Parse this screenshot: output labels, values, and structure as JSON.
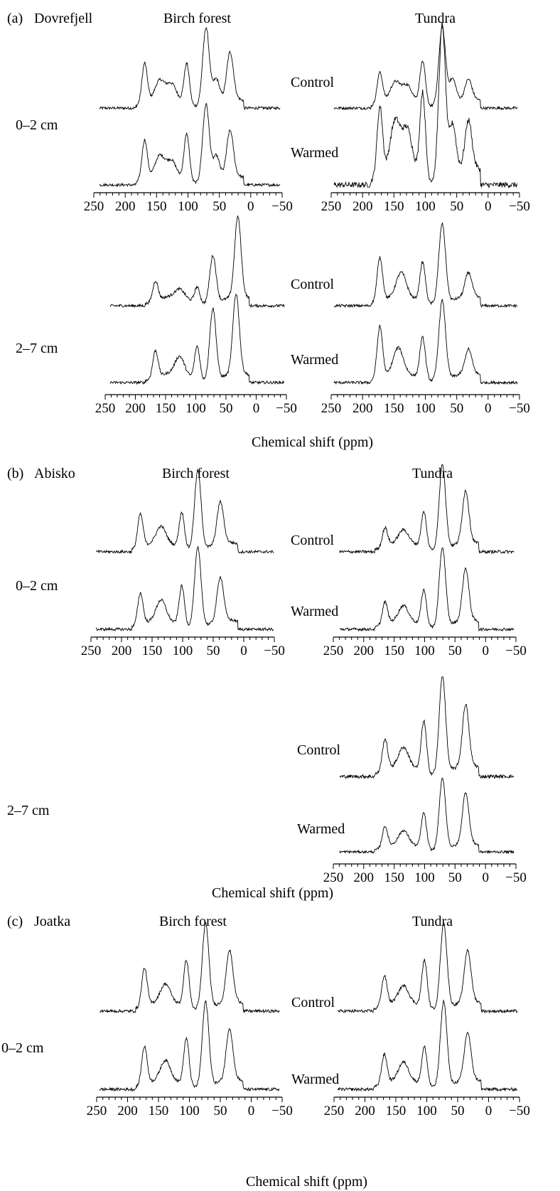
{
  "figure": {
    "x_axis_title": "Chemical shift (ppm)",
    "x_ticks": [
      "250",
      "200",
      "150",
      "100",
      "50",
      "0",
      "−50"
    ],
    "panels": [
      {
        "label": "(a)",
        "site": "Dovrefjell",
        "habitats": [
          "Birch forest",
          "Tundra"
        ],
        "depths": [
          {
            "label": "0–2 cm",
            "treatments": [
              "Control",
              "Warmed"
            ]
          },
          {
            "label": "2–7 cm",
            "treatments": [
              "Control",
              "Warmed"
            ]
          }
        ]
      },
      {
        "label": "(b)",
        "site": "Abisko",
        "habitats": [
          "Birch forest",
          "Tundra"
        ],
        "depths": [
          {
            "label": "0–2 cm",
            "treatments": [
              "Control",
              "Warmed"
            ]
          },
          {
            "label": "2–7 cm",
            "treatments": [
              "Control",
              "Warmed"
            ]
          }
        ]
      },
      {
        "label": "(c)",
        "site": "Joatka",
        "habitats": [
          "Birch forest",
          "Tundra"
        ],
        "depths": [
          {
            "label": "0–2 cm",
            "treatments": [
              "Control",
              "Warmed"
            ]
          }
        ]
      }
    ]
  },
  "chart_data": {
    "type": "line",
    "x_label": "Chemical shift (ppm)",
    "x_range": [
      250,
      -50
    ],
    "x_axis_reversed": true,
    "x_tick_values": [
      250,
      200,
      150,
      100,
      50,
      0,
      -50
    ],
    "y_axis": "none",
    "peak_positions_ppm": [
      175,
      150,
      130,
      105,
      73,
      56,
      30
    ],
    "series": [
      {
        "name": "Control",
        "site": "Dovrefjell",
        "habitat": "Birch forest",
        "depth": "0–2 cm",
        "peaks": [
          {
            "ppm": 175,
            "h": 0.52
          },
          {
            "ppm": 150,
            "h": 0.24
          },
          {
            "ppm": 130,
            "h": 0.2
          },
          {
            "ppm": 105,
            "h": 0.52
          },
          {
            "ppm": 73,
            "h": 1.0
          },
          {
            "ppm": 56,
            "h": 0.3
          },
          {
            "ppm": 33,
            "h": 0.6
          }
        ]
      },
      {
        "name": "Warmed",
        "site": "Dovrefjell",
        "habitat": "Birch forest",
        "depth": "0–2 cm",
        "peaks": [
          {
            "ppm": 175,
            "h": 0.52
          },
          {
            "ppm": 150,
            "h": 0.26
          },
          {
            "ppm": 130,
            "h": 0.2
          },
          {
            "ppm": 105,
            "h": 0.6
          },
          {
            "ppm": 73,
            "h": 1.0
          },
          {
            "ppm": 56,
            "h": 0.3
          },
          {
            "ppm": 33,
            "h": 0.58
          }
        ]
      },
      {
        "name": "Control",
        "site": "Dovrefjell",
        "habitat": "Tundra",
        "depth": "0–2 cm",
        "peaks": [
          {
            "ppm": 175,
            "h": 0.4
          },
          {
            "ppm": 150,
            "h": 0.22
          },
          {
            "ppm": 130,
            "h": 0.18
          },
          {
            "ppm": 105,
            "h": 0.55
          },
          {
            "ppm": 73,
            "h": 1.0
          },
          {
            "ppm": 56,
            "h": 0.3
          },
          {
            "ppm": 30,
            "h": 0.25
          }
        ]
      },
      {
        "name": "Warmed",
        "site": "Dovrefjell",
        "habitat": "Tundra",
        "depth": "0–2 cm",
        "peaks": [
          {
            "ppm": 175,
            "h": 0.45
          },
          {
            "ppm": 150,
            "h": 0.3
          },
          {
            "ppm": 130,
            "h": 0.25
          },
          {
            "ppm": 105,
            "h": 0.55
          },
          {
            "ppm": 73,
            "h": 1.0
          },
          {
            "ppm": 56,
            "h": 0.32
          },
          {
            "ppm": 30,
            "h": 0.3
          }
        ]
      },
      {
        "name": "Control",
        "site": "Dovrefjell",
        "habitat": "Birch forest",
        "depth": "2–7 cm",
        "peaks": [
          {
            "ppm": 172,
            "h": 0.25
          },
          {
            "ppm": 130,
            "h": 0.1
          },
          {
            "ppm": 100,
            "h": 0.2
          },
          {
            "ppm": 73,
            "h": 0.6
          },
          {
            "ppm": 30,
            "h": 1.0
          }
        ]
      },
      {
        "name": "Warmed",
        "site": "Dovrefjell",
        "habitat": "Birch forest",
        "depth": "2–7 cm",
        "peaks": [
          {
            "ppm": 172,
            "h": 0.34
          },
          {
            "ppm": 130,
            "h": 0.22
          },
          {
            "ppm": 100,
            "h": 0.42
          },
          {
            "ppm": 73,
            "h": 0.9
          },
          {
            "ppm": 33,
            "h": 1.0
          }
        ]
      },
      {
        "name": "Control",
        "site": "Dovrefjell",
        "habitat": "Tundra",
        "depth": "2–7 cm",
        "peaks": [
          {
            "ppm": 175,
            "h": 0.55
          },
          {
            "ppm": 140,
            "h": 0.3
          },
          {
            "ppm": 105,
            "h": 0.5
          },
          {
            "ppm": 73,
            "h": 1.0
          },
          {
            "ppm": 30,
            "h": 0.3
          }
        ]
      },
      {
        "name": "Warmed",
        "site": "Dovrefjell",
        "habitat": "Tundra",
        "depth": "2–7 cm",
        "peaks": [
          {
            "ppm": 175,
            "h": 0.65
          },
          {
            "ppm": 145,
            "h": 0.32
          },
          {
            "ppm": 105,
            "h": 0.52
          },
          {
            "ppm": 73,
            "h": 1.0
          },
          {
            "ppm": 30,
            "h": 0.3
          }
        ]
      },
      {
        "name": "Control",
        "site": "Abisko",
        "habitat": "Birch forest",
        "depth": "0–2 cm",
        "peaks": [
          {
            "ppm": 175,
            "h": 0.42
          },
          {
            "ppm": 140,
            "h": 0.2
          },
          {
            "ppm": 105,
            "h": 0.45
          },
          {
            "ppm": 78,
            "h": 1.0
          },
          {
            "ppm": 40,
            "h": 0.52
          }
        ]
      },
      {
        "name": "Warmed",
        "site": "Abisko",
        "habitat": "Birch forest",
        "depth": "0–2 cm",
        "peaks": [
          {
            "ppm": 175,
            "h": 0.4
          },
          {
            "ppm": 140,
            "h": 0.25
          },
          {
            "ppm": 105,
            "h": 0.5
          },
          {
            "ppm": 78,
            "h": 1.0
          },
          {
            "ppm": 40,
            "h": 0.55
          }
        ]
      },
      {
        "name": "Control",
        "site": "Abisko",
        "habitat": "Tundra",
        "depth": "0–2 cm",
        "peaks": [
          {
            "ppm": 172,
            "h": 0.22
          },
          {
            "ppm": 140,
            "h": 0.14
          },
          {
            "ppm": 105,
            "h": 0.42
          },
          {
            "ppm": 73,
            "h": 1.0
          },
          {
            "ppm": 33,
            "h": 0.6
          }
        ]
      },
      {
        "name": "Warmed",
        "site": "Abisko",
        "habitat": "Tundra",
        "depth": "0–2 cm",
        "peaks": [
          {
            "ppm": 172,
            "h": 0.28
          },
          {
            "ppm": 140,
            "h": 0.18
          },
          {
            "ppm": 105,
            "h": 0.45
          },
          {
            "ppm": 73,
            "h": 1.0
          },
          {
            "ppm": 33,
            "h": 0.65
          }
        ]
      },
      {
        "name": "Control",
        "site": "Abisko",
        "habitat": "Tundra",
        "depth": "2–7 cm",
        "peaks": [
          {
            "ppm": 172,
            "h": 0.32
          },
          {
            "ppm": 140,
            "h": 0.18
          },
          {
            "ppm": 105,
            "h": 0.52
          },
          {
            "ppm": 73,
            "h": 1.0
          },
          {
            "ppm": 33,
            "h": 0.62
          }
        ]
      },
      {
        "name": "Warmed",
        "site": "Abisko",
        "habitat": "Tundra",
        "depth": "2–7 cm",
        "peaks": [
          {
            "ppm": 172,
            "h": 0.3
          },
          {
            "ppm": 140,
            "h": 0.18
          },
          {
            "ppm": 105,
            "h": 0.5
          },
          {
            "ppm": 73,
            "h": 1.0
          },
          {
            "ppm": 33,
            "h": 0.72
          }
        ]
      },
      {
        "name": "Control",
        "site": "Joatka",
        "habitat": "Birch forest",
        "depth": "0–2 cm",
        "peaks": [
          {
            "ppm": 175,
            "h": 0.45
          },
          {
            "ppm": 140,
            "h": 0.2
          },
          {
            "ppm": 105,
            "h": 0.55
          },
          {
            "ppm": 73,
            "h": 1.0
          },
          {
            "ppm": 33,
            "h": 0.6
          }
        ]
      },
      {
        "name": "Warmed",
        "site": "Joatka",
        "habitat": "Birch forest",
        "depth": "0–2 cm",
        "peaks": [
          {
            "ppm": 175,
            "h": 0.45
          },
          {
            "ppm": 140,
            "h": 0.22
          },
          {
            "ppm": 105,
            "h": 0.55
          },
          {
            "ppm": 73,
            "h": 1.0
          },
          {
            "ppm": 33,
            "h": 0.6
          }
        ]
      },
      {
        "name": "Control",
        "site": "Joatka",
        "habitat": "Tundra",
        "depth": "0–2 cm",
        "peaks": [
          {
            "ppm": 172,
            "h": 0.35
          },
          {
            "ppm": 140,
            "h": 0.18
          },
          {
            "ppm": 105,
            "h": 0.55
          },
          {
            "ppm": 73,
            "h": 1.0
          },
          {
            "ppm": 33,
            "h": 0.6
          }
        ]
      },
      {
        "name": "Warmed",
        "site": "Joatka",
        "habitat": "Tundra",
        "depth": "0–2 cm",
        "peaks": [
          {
            "ppm": 172,
            "h": 0.35
          },
          {
            "ppm": 140,
            "h": 0.2
          },
          {
            "ppm": 105,
            "h": 0.45
          },
          {
            "ppm": 73,
            "h": 1.0
          },
          {
            "ppm": 33,
            "h": 0.55
          }
        ]
      }
    ]
  }
}
